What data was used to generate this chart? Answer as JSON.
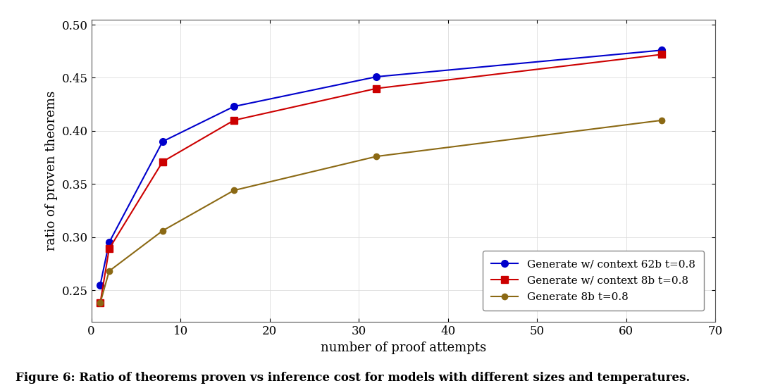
{
  "series": [
    {
      "label": "Generate w/ context 62b t=0.8",
      "color": "#0000cc",
      "marker": "o",
      "markersize": 7,
      "linewidth": 1.5,
      "x": [
        1,
        2,
        8,
        16,
        32,
        64
      ],
      "y": [
        0.255,
        0.295,
        0.39,
        0.423,
        0.451,
        0.476
      ]
    },
    {
      "label": "Generate w/ context 8b t=0.8",
      "color": "#cc0000",
      "marker": "s",
      "markersize": 7,
      "linewidth": 1.5,
      "x": [
        1,
        2,
        8,
        16,
        32,
        64
      ],
      "y": [
        0.238,
        0.289,
        0.371,
        0.41,
        0.44,
        0.472
      ]
    },
    {
      "label": "Generate 8b t=0.8",
      "color": "#8B6914",
      "marker": "o",
      "markersize": 6,
      "linewidth": 1.5,
      "x": [
        1,
        2,
        8,
        16,
        32,
        64
      ],
      "y": [
        0.238,
        0.268,
        0.306,
        0.344,
        0.376,
        0.41
      ]
    }
  ],
  "xlabel": "number of proof attempts",
  "ylabel": "ratio of proven theorems",
  "xlim": [
    0,
    70
  ],
  "ylim": [
    0.22,
    0.505
  ],
  "xticks": [
    0,
    10,
    20,
    30,
    40,
    50,
    60,
    70
  ],
  "yticks": [
    0.25,
    0.3,
    0.35,
    0.4,
    0.45,
    0.5
  ],
  "caption": "Figure 6: Ratio of theorems proven vs inference cost for models with different sizes and temperatures.",
  "background_color": "#ffffff",
  "figsize": [
    10.8,
    5.51
  ],
  "dpi": 100
}
